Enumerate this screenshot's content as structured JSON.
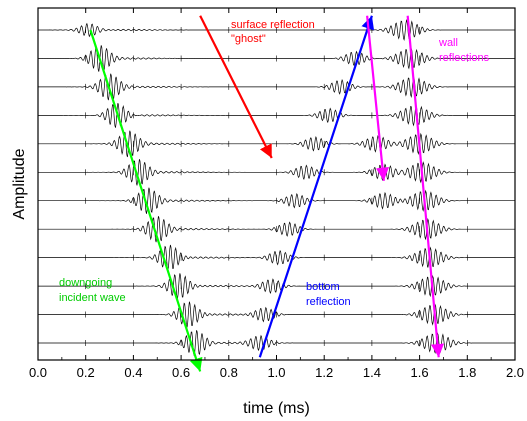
{
  "chart_data": {
    "type": "line",
    "title": "",
    "xlabel": "time (ms)",
    "ylabel": "Amplitude",
    "xlim": [
      0.0,
      2.0
    ],
    "xticks": [
      "0.0",
      "0.2",
      "0.4",
      "0.6",
      "0.8",
      "1.0",
      "1.2",
      "1.4",
      "1.6",
      "1.8",
      "2.0"
    ],
    "trace_count": 12,
    "series": [
      {
        "color": "#000000",
        "arrivals_ms": {
          "direct": 0.22,
          "bottom": null,
          "ghost": 0.23,
          "wall": 1.54
        }
      },
      {
        "color": "#000000",
        "arrivals_ms": {
          "direct": 0.26,
          "bottom": 1.33,
          "ghost": null,
          "wall": 1.56
        }
      },
      {
        "color": "#000000",
        "arrivals_ms": {
          "direct": 0.3,
          "bottom": 1.27,
          "ghost": null,
          "wall": 1.57
        }
      },
      {
        "color": "#000000",
        "arrivals_ms": {
          "direct": 0.33,
          "bottom": 1.22,
          "ghost": null,
          "wall": 1.58
        }
      },
      {
        "color": "#000000",
        "arrivals_ms": {
          "direct": 0.38,
          "bottom": 1.16,
          "ghost": 1.42,
          "wall": 1.6
        }
      },
      {
        "color": "#000000",
        "arrivals_ms": {
          "direct": 0.42,
          "bottom": 1.12,
          "ghost": 1.45,
          "wall": 1.61
        }
      },
      {
        "color": "#000000",
        "arrivals_ms": {
          "direct": 0.46,
          "bottom": 1.08,
          "ghost": 1.45,
          "wall": 1.62
        }
      },
      {
        "color": "#000000",
        "arrivals_ms": {
          "direct": 0.5,
          "bottom": 1.05,
          "ghost": null,
          "wall": 1.63
        }
      },
      {
        "color": "#000000",
        "arrivals_ms": {
          "direct": 0.55,
          "bottom": 1.01,
          "ghost": null,
          "wall": 1.64
        }
      },
      {
        "color": "#000000",
        "arrivals_ms": {
          "direct": 0.59,
          "bottom": 0.98,
          "ghost": null,
          "wall": 1.65
        }
      },
      {
        "color": "#000000",
        "arrivals_ms": {
          "direct": 0.63,
          "bottom": 0.95,
          "ghost": null,
          "wall": 1.66
        }
      },
      {
        "color": "#000000",
        "arrivals_ms": {
          "direct": 0.66,
          "bottom": 0.93,
          "ghost": null,
          "wall": 1.67
        }
      }
    ],
    "annotations": [
      {
        "text": "surface reflection",
        "color": "#ff0000"
      },
      {
        "text": "\"ghost\"",
        "color": "#ff0000"
      },
      {
        "text": "wall",
        "color": "#ff00ff"
      },
      {
        "text": "reflections",
        "color": "#ff00ff"
      },
      {
        "text": "downgoing",
        "color": "#00cc00"
      },
      {
        "text": "incident wave",
        "color": "#00cc00"
      },
      {
        "text": "bottom",
        "color": "#0000ff"
      },
      {
        "text": "reflection",
        "color": "#0000ff"
      }
    ],
    "arrows": [
      {
        "name": "incident-arrow",
        "color": "#00ff00",
        "from": {
          "x_ms": 0.22,
          "trace": 0
        },
        "to": {
          "x_ms": 0.68,
          "trace": 12
        }
      },
      {
        "name": "surface-arrow",
        "color": "#ff0000",
        "from": {
          "x_ms": 0.68,
          "trace": -0.5
        },
        "to": {
          "x_ms": 0.98,
          "trace": 4.5
        }
      },
      {
        "name": "bottom-arrow",
        "color": "#0000ff",
        "from": {
          "x_ms": 0.93,
          "trace": 11.5
        },
        "to": {
          "x_ms": 1.4,
          "trace": -0.5
        }
      },
      {
        "name": "wall-arrow-1",
        "color": "#ff00ff",
        "from": {
          "x_ms": 1.38,
          "trace": -0.5
        },
        "to": {
          "x_ms": 1.45,
          "trace": 5.3
        }
      },
      {
        "name": "wall-arrow-2",
        "color": "#ff00ff",
        "from": {
          "x_ms": 1.55,
          "trace": -0.5
        },
        "to": {
          "x_ms": 1.68,
          "trace": 11.5
        }
      }
    ],
    "grid": false,
    "legend": "none"
  }
}
